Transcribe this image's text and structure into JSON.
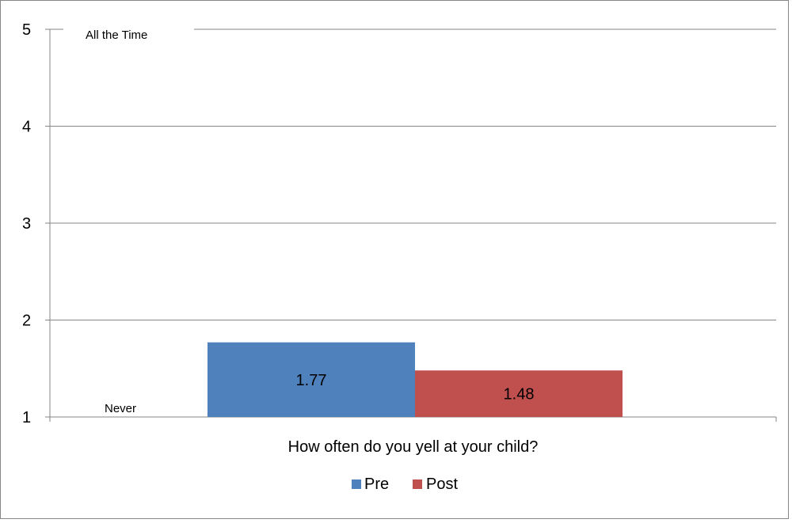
{
  "chart_data": {
    "type": "bar",
    "title": "",
    "categories": [
      "How often do you yell at your child?"
    ],
    "series": [
      {
        "name": "Pre",
        "values": [
          1.77
        ],
        "color": "#4f81bd"
      },
      {
        "name": "Post",
        "values": [
          1.48
        ],
        "color": "#c0504d"
      }
    ],
    "data_labels": [
      "1.77",
      "1.48"
    ],
    "ylim": [
      1,
      5
    ],
    "yticks": [
      1,
      2,
      3,
      4,
      5
    ],
    "ytick_labels": [
      "1",
      "2",
      "3",
      "4",
      "5"
    ],
    "grid": true,
    "grid_color": "#868686",
    "annotations": {
      "top": "All the Time",
      "bottom": "Never"
    },
    "legend_position": "bottom"
  }
}
